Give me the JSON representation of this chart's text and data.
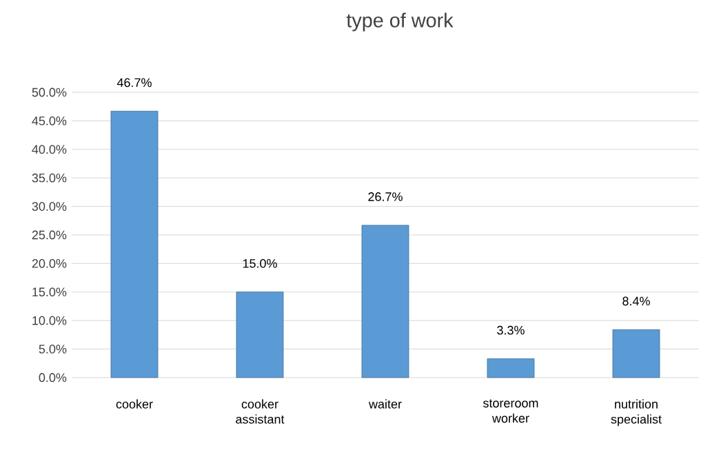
{
  "chart_data": {
    "type": "bar",
    "title": "type of work",
    "categories": [
      "cooker",
      "cooker assistant",
      "waiter",
      "storeroom worker",
      "nutrition specialist"
    ],
    "values": [
      46.7,
      15.0,
      26.7,
      3.3,
      8.4
    ],
    "value_labels": [
      "46.7%",
      "15.0%",
      "26.7%",
      "3.3%",
      "8.4%"
    ],
    "color": "#5b9bd5",
    "ylim": [
      0,
      50
    ],
    "yticks": [
      {
        "value": 0,
        "label": "0.0%"
      },
      {
        "value": 5,
        "label": "5.0%"
      },
      {
        "value": 10,
        "label": "10.0%"
      },
      {
        "value": 15,
        "label": "15.0%"
      },
      {
        "value": 20,
        "label": "20.0%"
      },
      {
        "value": 25,
        "label": "25.0%"
      },
      {
        "value": 30,
        "label": "30.0%"
      },
      {
        "value": 35,
        "label": "35.0%"
      },
      {
        "value": 40,
        "label": "40.0%"
      },
      {
        "value": 45,
        "label": "45.0%"
      },
      {
        "value": 50,
        "label": "50.0%"
      }
    ],
    "grid": "y"
  }
}
